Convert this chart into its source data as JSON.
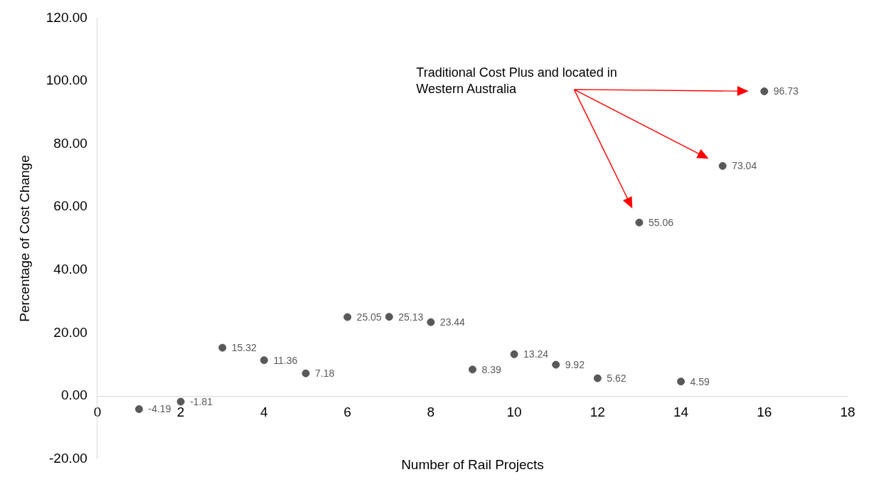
{
  "chart_data": {
    "type": "scatter",
    "xlabel": "Number of Rail Projects",
    "ylabel": "Percentage of Cost Change",
    "x": [
      1,
      2,
      3,
      4,
      5,
      6,
      7,
      8,
      9,
      10,
      11,
      12,
      13,
      14,
      15,
      16
    ],
    "series": [
      {
        "color": "#595959",
        "values": [
          -4.19,
          -1.81,
          15.32,
          11.36,
          7.18,
          25.05,
          25.13,
          23.44,
          8.39,
          13.24,
          9.92,
          5.62,
          55.06,
          4.59,
          73.04,
          96.73
        ]
      }
    ],
    "xlim": [
      0,
      18
    ],
    "xticks": [
      0,
      2,
      4,
      6,
      8,
      10,
      12,
      14,
      16,
      18
    ],
    "ylim": [
      -20,
      120
    ],
    "yticks": [
      {
        "value": -20,
        "label": "-20.00"
      },
      {
        "value": 0,
        "label": "0.00"
      },
      {
        "value": 20,
        "label": "20.00"
      },
      {
        "value": 40,
        "label": "40.00"
      },
      {
        "value": 60,
        "label": "60.00"
      },
      {
        "value": 80,
        "label": "80.00"
      },
      {
        "value": 100,
        "label": "100.00"
      },
      {
        "value": 120,
        "label": "120.00"
      }
    ],
    "grid": false,
    "legend": false,
    "marker": "circle",
    "data_labels": true,
    "annotations": [
      "Traditional Cost Plus and located in\nWestern Australia"
    ]
  }
}
